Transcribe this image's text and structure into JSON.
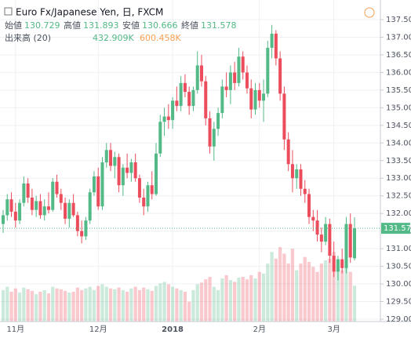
{
  "chart_data": {
    "type": "candlestick",
    "title": "Euro Fx/Japanese Yen, 日, FXCM",
    "ohlc_labels": [
      "始値",
      "高値",
      "安値",
      "終値"
    ],
    "up_color": "#53b987",
    "down_color": "#eb4d5c",
    "categories": [
      null,
      null,
      null,
      "11月",
      null,
      null,
      null,
      null,
      null,
      null,
      null,
      null,
      null,
      null,
      null,
      null,
      null,
      null,
      null,
      null,
      null,
      null,
      null,
      "12月",
      null,
      null,
      null,
      null,
      null,
      null,
      null,
      null,
      null,
      null,
      null,
      null,
      null,
      null,
      null,
      null,
      null,
      "2018",
      null,
      null,
      null,
      null,
      null,
      null,
      null,
      null,
      null,
      null,
      null,
      null,
      null,
      null,
      null,
      null,
      null,
      null,
      null,
      null,
      "2月",
      null,
      null,
      null,
      null,
      null,
      null,
      null,
      null,
      null,
      null,
      null,
      null,
      null,
      null,
      null,
      null,
      null,
      "3月",
      null,
      null,
      null,
      null,
      null
    ],
    "candles": [
      [
        131.7,
        132.1,
        131.45,
        131.95
      ],
      [
        131.95,
        132.55,
        131.8,
        132.4
      ],
      [
        132.4,
        132.6,
        131.9,
        132.05
      ],
      [
        132.05,
        132.3,
        131.6,
        131.8
      ],
      [
        131.8,
        132.4,
        131.7,
        132.3
      ],
      [
        132.3,
        133.05,
        132.2,
        132.85
      ],
      [
        132.85,
        133.0,
        132.3,
        132.45
      ],
      [
        132.45,
        132.7,
        131.95,
        132.1
      ],
      [
        132.1,
        132.5,
        131.9,
        132.35
      ],
      [
        132.35,
        132.55,
        131.85,
        131.95
      ],
      [
        131.95,
        132.4,
        131.8,
        132.2
      ],
      [
        132.2,
        132.6,
        132.0,
        132.1
      ],
      [
        132.1,
        133.0,
        132.05,
        132.9
      ],
      [
        132.9,
        133.1,
        132.45,
        132.55
      ],
      [
        132.55,
        132.7,
        132.1,
        132.3
      ],
      [
        132.3,
        132.45,
        131.7,
        131.85
      ],
      [
        131.85,
        132.4,
        131.6,
        132.3
      ],
      [
        132.3,
        132.55,
        131.9,
        131.95
      ],
      [
        131.95,
        132.05,
        131.35,
        131.5
      ],
      [
        131.5,
        131.8,
        131.15,
        131.35
      ],
      [
        131.35,
        131.9,
        131.25,
        131.8
      ],
      [
        131.8,
        132.7,
        131.7,
        132.6
      ],
      [
        132.6,
        133.2,
        132.5,
        133.05
      ],
      [
        133.05,
        133.3,
        132.1,
        132.2
      ],
      [
        132.2,
        133.6,
        132.1,
        133.45
      ],
      [
        133.45,
        134.0,
        133.3,
        133.8
      ],
      [
        133.8,
        134.0,
        133.2,
        133.35
      ],
      [
        133.35,
        133.75,
        133.0,
        133.6
      ],
      [
        133.6,
        133.7,
        132.6,
        132.8
      ],
      [
        132.8,
        133.4,
        132.5,
        133.3
      ],
      [
        133.3,
        133.7,
        133.0,
        133.15
      ],
      [
        133.15,
        133.55,
        132.9,
        133.45
      ],
      [
        133.45,
        133.7,
        132.9,
        133.0
      ],
      [
        133.0,
        133.1,
        132.3,
        132.45
      ],
      [
        132.45,
        132.7,
        131.95,
        132.2
      ],
      [
        132.2,
        132.9,
        132.05,
        132.8
      ],
      [
        132.8,
        133.2,
        132.4,
        132.55
      ],
      [
        132.55,
        134.0,
        132.5,
        133.7
      ],
      [
        133.7,
        134.8,
        133.6,
        134.6
      ],
      [
        134.6,
        135.0,
        134.2,
        134.75
      ],
      [
        134.75,
        135.1,
        134.4,
        134.65
      ],
      [
        134.65,
        135.3,
        134.4,
        135.2
      ],
      [
        135.2,
        135.6,
        134.9,
        135.05
      ],
      [
        135.05,
        135.9,
        134.9,
        135.7
      ],
      [
        135.7,
        135.95,
        135.3,
        135.45
      ],
      [
        135.45,
        135.6,
        134.8,
        135.05
      ],
      [
        135.05,
        135.6,
        134.9,
        135.5
      ],
      [
        135.5,
        136.6,
        135.4,
        136.2
      ],
      [
        136.2,
        136.5,
        135.6,
        135.75
      ],
      [
        135.75,
        135.9,
        134.5,
        134.7
      ],
      [
        134.7,
        134.9,
        133.7,
        133.9
      ],
      [
        133.9,
        134.6,
        133.5,
        134.4
      ],
      [
        134.4,
        135.0,
        134.2,
        134.85
      ],
      [
        134.85,
        135.8,
        134.7,
        135.6
      ],
      [
        135.6,
        136.0,
        135.3,
        135.5
      ],
      [
        135.5,
        136.2,
        135.1,
        136.0
      ],
      [
        136.0,
        136.3,
        135.5,
        135.7
      ],
      [
        135.7,
        136.7,
        135.6,
        136.45
      ],
      [
        136.45,
        136.6,
        135.8,
        136.0
      ],
      [
        136.0,
        136.2,
        135.4,
        135.55
      ],
      [
        135.55,
        135.8,
        134.7,
        134.95
      ],
      [
        134.95,
        135.7,
        134.8,
        135.5
      ],
      [
        135.5,
        135.7,
        135.0,
        135.2
      ],
      [
        135.2,
        135.8,
        134.6,
        135.4
      ],
      [
        135.4,
        136.9,
        135.3,
        136.7
      ],
      [
        136.7,
        137.35,
        136.4,
        137.1
      ],
      [
        137.1,
        137.2,
        136.2,
        136.4
      ],
      [
        136.4,
        136.6,
        135.2,
        135.4
      ],
      [
        135.4,
        135.6,
        133.8,
        134.1
      ],
      [
        134.1,
        134.3,
        133.2,
        133.4
      ],
      [
        133.4,
        133.8,
        132.6,
        133.0
      ],
      [
        133.0,
        133.4,
        132.7,
        133.25
      ],
      [
        133.25,
        133.4,
        132.5,
        132.7
      ],
      [
        132.7,
        132.95,
        132.3,
        132.55
      ],
      [
        132.55,
        132.7,
        131.7,
        131.9
      ],
      [
        131.9,
        132.1,
        131.5,
        131.8
      ],
      [
        131.8,
        132.1,
        131.2,
        131.4
      ],
      [
        131.4,
        131.6,
        130.9,
        131.2
      ],
      [
        131.2,
        131.9,
        131.1,
        131.7
      ],
      [
        131.7,
        131.85,
        130.6,
        130.8
      ],
      [
        130.8,
        131.2,
        130.2,
        130.35
      ],
      [
        130.35,
        130.8,
        130.1,
        130.7
      ],
      [
        130.7,
        131.0,
        130.3,
        130.45
      ],
      [
        130.45,
        131.9,
        130.3,
        131.7
      ],
      [
        131.7,
        132.0,
        130.6,
        130.75
      ],
      [
        130.729,
        131.893,
        130.666,
        131.578
      ]
    ],
    "volume": {
      "name": "出来高 (20)",
      "last_label": "432.909K",
      "ma_label": "600.458K",
      "values": [
        380,
        420,
        360,
        400,
        350,
        410,
        390,
        370,
        330,
        360,
        380,
        340,
        420,
        400,
        390,
        370,
        350,
        360,
        410,
        380,
        400,
        420,
        380,
        430,
        450,
        420,
        400,
        390,
        410,
        380,
        360,
        400,
        420,
        380,
        410,
        390,
        370,
        430,
        460,
        480,
        450,
        420,
        400,
        380,
        360,
        240,
        380,
        450,
        470,
        510,
        540,
        420,
        380,
        520,
        560,
        500,
        480,
        530,
        540,
        510,
        560,
        520,
        600,
        580,
        700,
        840,
        760,
        900,
        820,
        700,
        880,
        620,
        700,
        780,
        720,
        660,
        600,
        700,
        740,
        760,
        840,
        680,
        620,
        700,
        600,
        432.909
      ]
    },
    "ylim": [
      129.0,
      137.5
    ],
    "yticks": [
      {
        "value": 129.0,
        "label": "129.000"
      },
      {
        "value": 129.5,
        "label": "129.500"
      },
      {
        "value": 130.0,
        "label": "130.000"
      },
      {
        "value": 130.5,
        "label": "130.500"
      },
      {
        "value": 131.0,
        "label": "131.000"
      },
      {
        "value": 131.5,
        "label": "131.500"
      },
      {
        "value": 132.0,
        "label": "132.000"
      },
      {
        "value": 132.5,
        "label": "132.500"
      },
      {
        "value": 133.0,
        "label": "133.000"
      },
      {
        "value": 133.5,
        "label": "133.500"
      },
      {
        "value": 134.0,
        "label": "134.000"
      },
      {
        "value": 134.5,
        "label": "134.500"
      },
      {
        "value": 135.0,
        "label": "135.000"
      },
      {
        "value": 135.5,
        "label": "135.500"
      },
      {
        "value": 136.0,
        "label": "136.000"
      },
      {
        "value": 136.5,
        "label": "136.500"
      },
      {
        "value": 137.0,
        "label": "137.000"
      },
      {
        "value": 137.5,
        "label": "137.500"
      }
    ],
    "grid": true
  }
}
